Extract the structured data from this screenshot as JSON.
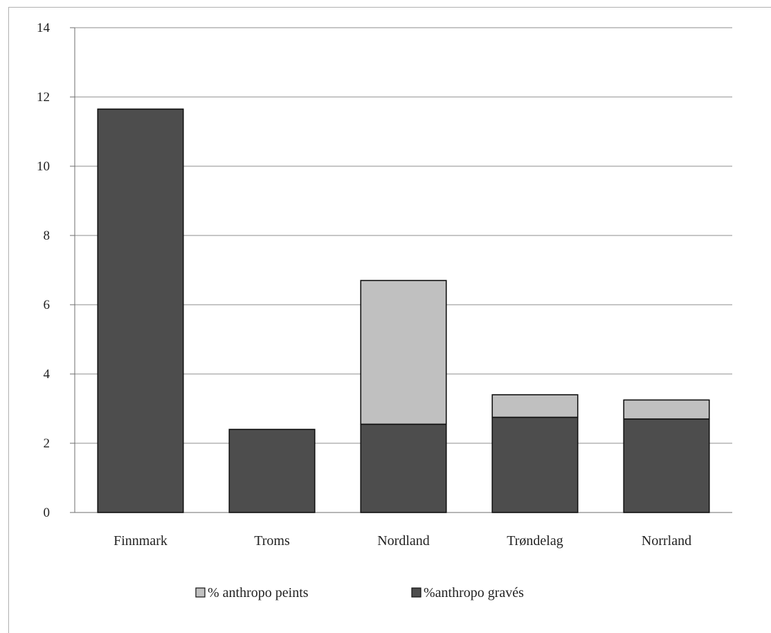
{
  "chart_data": {
    "type": "bar",
    "stacked": true,
    "categories": [
      "Finnmark",
      "Troms",
      "Nordland",
      "Trøndelag",
      "Norrland"
    ],
    "series": [
      {
        "name": "%anthropo gravés",
        "color": "#4d4d4d",
        "values": [
          11.65,
          2.4,
          2.55,
          2.75,
          2.7
        ]
      },
      {
        "name": "% anthropo peints",
        "color": "#c0c0c0",
        "values": [
          0,
          0,
          4.15,
          0.65,
          0.55
        ]
      }
    ],
    "ylim": [
      0,
      14
    ],
    "yticks": [
      0,
      2,
      4,
      6,
      8,
      10,
      12,
      14
    ],
    "grid": true,
    "legend": {
      "placement": "bottom",
      "order": [
        "% anthropo peints",
        "%anthropo gravés"
      ]
    },
    "title": "",
    "xlabel": "",
    "ylabel": ""
  }
}
